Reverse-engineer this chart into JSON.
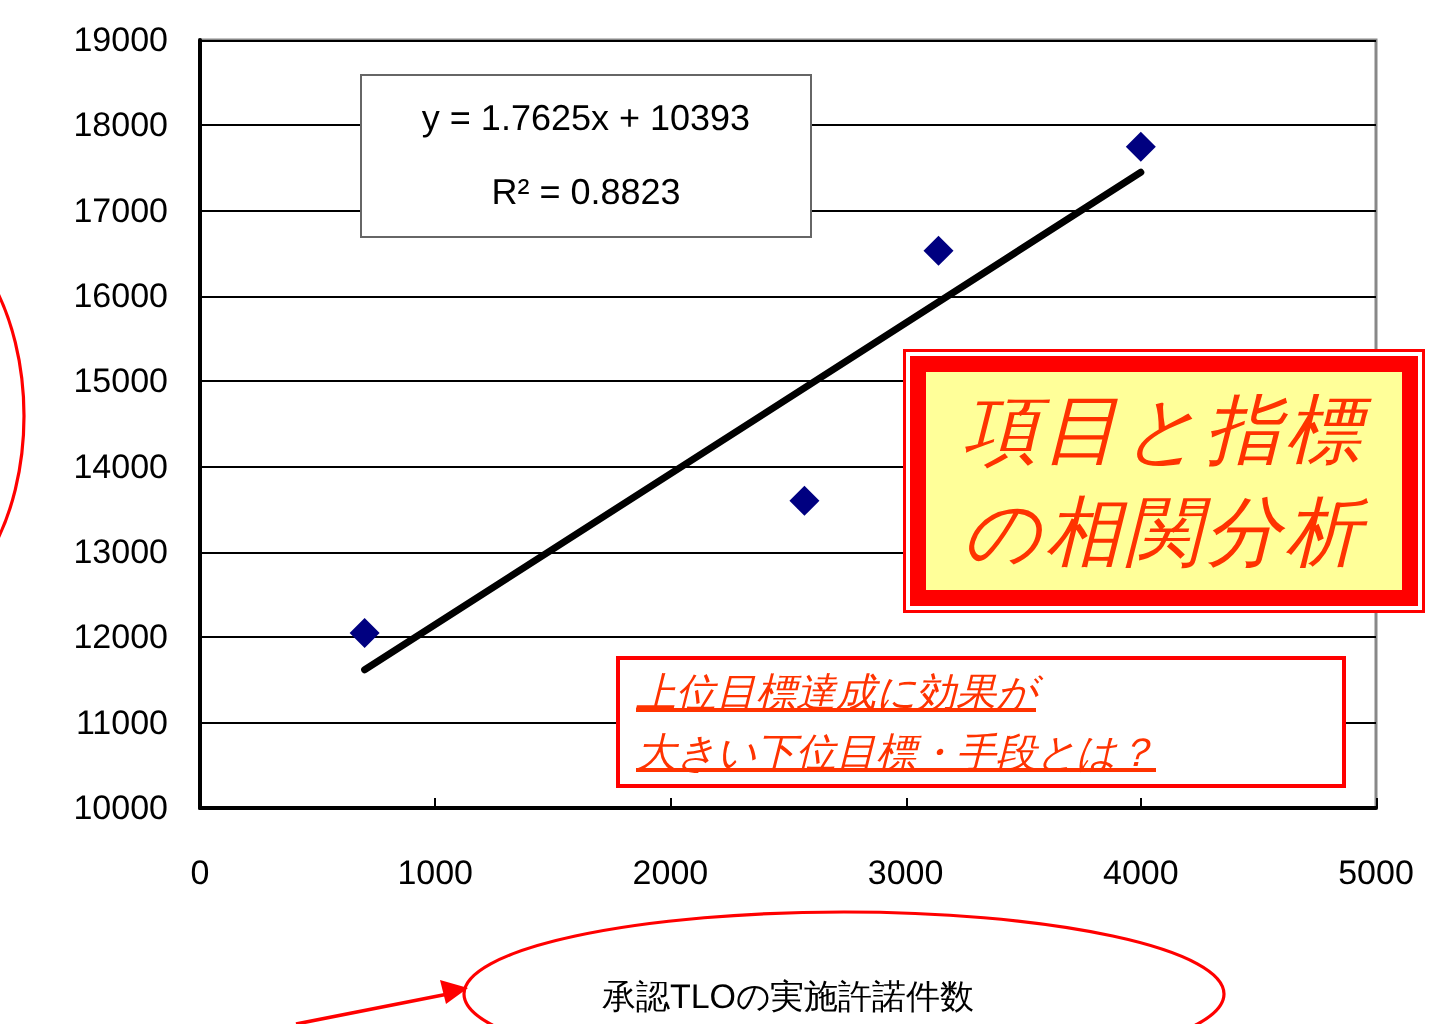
{
  "chart_data": {
    "type": "scatter",
    "xlabel": "承認TLOの実施許諾件数",
    "xlim": [
      0,
      5000
    ],
    "xticks": [
      0,
      1000,
      2000,
      3000,
      4000,
      5000
    ],
    "ylim": [
      10000,
      19000
    ],
    "yticks": [
      10000,
      11000,
      12000,
      13000,
      14000,
      15000,
      16000,
      17000,
      18000,
      19000
    ],
    "grid": "y",
    "marker": "diamond",
    "series": [
      {
        "color": "#000080",
        "x": [
          700,
          2570,
          3140,
          4000
        ],
        "values": [
          12050,
          13600,
          16530,
          17750
        ]
      },
      {
        "type": "line",
        "color": "#000000",
        "x": [
          700,
          4000
        ],
        "values": [
          11620,
          17450
        ],
        "marker": "none",
        "line_style": "solid"
      }
    ],
    "annotations": [
      "y = 1.7625x + 10393\nR² = 0.8823",
      "項目と指標の相関分析",
      "上位目標達成に効果が大きい下位目標・手段とは？"
    ]
  }
}
